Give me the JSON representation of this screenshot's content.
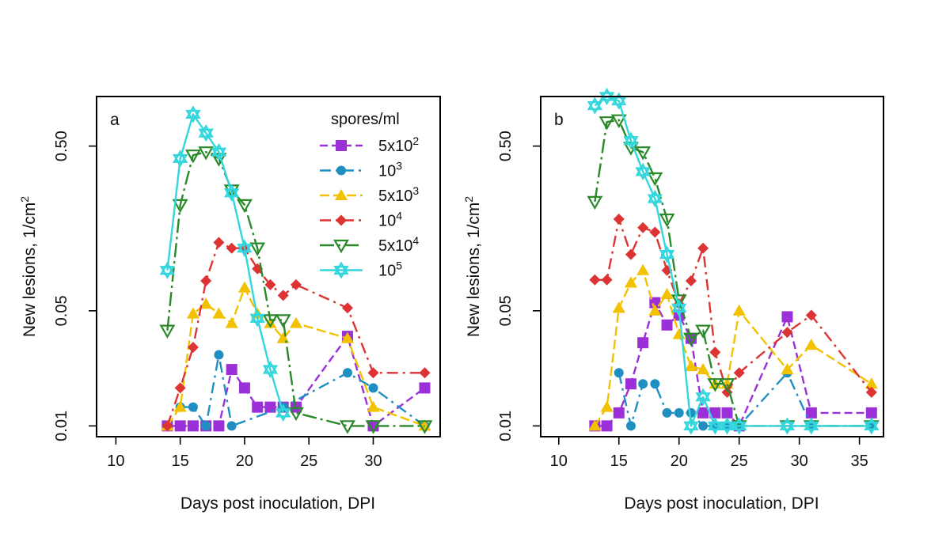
{
  "chart_data": [
    {
      "panel": "a",
      "type": "line",
      "xlabel": "Days post inoculation, DPI",
      "ylabel": "New lesions, 1/cm",
      "ylabel_sup": "2",
      "ylog": true,
      "xlim": [
        8.5,
        35.2
      ],
      "ylim": [
        0.0086,
        1.0
      ],
      "xticks": [
        10,
        15,
        20,
        25,
        30
      ],
      "yticks": [
        {
          "value": 0.01,
          "label": "0.01"
        },
        {
          "value": 0.05,
          "label": "0.05"
        },
        {
          "value": 0.5,
          "label": "0.50"
        }
      ],
      "legend": {
        "title": "spores/ml",
        "placement": "top-right",
        "entries": [
          {
            "base": "5x10",
            "sup": "2"
          },
          {
            "base": "10",
            "sup": "3"
          },
          {
            "base": "5x10",
            "sup": "3"
          },
          {
            "base": "10",
            "sup": "4"
          },
          {
            "base": "5x10",
            "sup": "4"
          },
          {
            "base": "10",
            "sup": "5"
          }
        ]
      },
      "series": [
        {
          "color": "#9b30d9",
          "marker": "square",
          "dash": "10,5",
          "x": [
            14,
            15,
            16,
            17,
            18,
            19,
            20,
            21,
            22,
            23,
            24,
            28,
            30,
            34
          ],
          "y": [
            0.01,
            0.01,
            0.01,
            0.01,
            0.01,
            0.022,
            0.017,
            0.013,
            0.013,
            0.013,
            0.013,
            0.035,
            0.01,
            0.017
          ]
        },
        {
          "color": "#1f8fc2",
          "marker": "circle",
          "dash": "14,6,3,6",
          "x": [
            15,
            16,
            17,
            18,
            19,
            23,
            28,
            30,
            34
          ],
          "y": [
            0.013,
            0.013,
            0.01,
            0.027,
            0.01,
            0.013,
            0.021,
            0.017,
            0.01
          ]
        },
        {
          "color": "#f2c200",
          "marker": "triangle",
          "dash": "12,5",
          "x": [
            14,
            15,
            16,
            17,
            18,
            19,
            20,
            21,
            22,
            23,
            24,
            28,
            30,
            34
          ],
          "y": [
            0.01,
            0.013,
            0.048,
            0.055,
            0.048,
            0.042,
            0.069,
            0.048,
            0.042,
            0.034,
            0.042,
            0.034,
            0.013,
            0.01
          ]
        },
        {
          "color": "#dd3333",
          "marker": "diamond",
          "dash": "14,6,3,6",
          "x": [
            14,
            15,
            16,
            17,
            18,
            19,
            20,
            21,
            22,
            23,
            24,
            28,
            30,
            34
          ],
          "y": [
            0.01,
            0.017,
            0.03,
            0.076,
            0.13,
            0.12,
            0.12,
            0.09,
            0.072,
            0.062,
            0.072,
            0.052,
            0.021,
            0.021
          ]
        },
        {
          "color": "#2a8a2a",
          "marker": "triangle-down",
          "dash": "18,5,3,5",
          "x": [
            14,
            15,
            16,
            17,
            18,
            19,
            20,
            21,
            22,
            23,
            24,
            28,
            30,
            34
          ],
          "y": [
            0.038,
            0.22,
            0.44,
            0.46,
            0.42,
            0.27,
            0.22,
            0.12,
            0.044,
            0.044,
            0.012,
            0.01,
            0.01,
            0.01
          ]
        },
        {
          "color": "#33d6dd",
          "marker": "star",
          "dash": "",
          "x": [
            14,
            15,
            16,
            17,
            18,
            19,
            20,
            21,
            22,
            23
          ],
          "y": [
            0.088,
            0.42,
            0.78,
            0.6,
            0.46,
            0.26,
            0.12,
            0.045,
            0.022,
            0.012
          ]
        }
      ]
    },
    {
      "panel": "b",
      "type": "line",
      "xlabel": "Days post inoculation, DPI",
      "ylabel": "New lesions, 1/cm",
      "ylabel_sup": "2",
      "ylog": true,
      "xlim": [
        8.5,
        37.0
      ],
      "ylim": [
        0.0086,
        1.0
      ],
      "xticks": [
        10,
        15,
        20,
        25,
        30,
        35
      ],
      "yticks": [
        {
          "value": 0.01,
          "label": "0.01"
        },
        {
          "value": 0.05,
          "label": "0.05"
        },
        {
          "value": 0.5,
          "label": "0.50"
        }
      ],
      "series": [
        {
          "color": "#9b30d9",
          "marker": "square",
          "dash": "10,5",
          "x": [
            13,
            14,
            15,
            16,
            17,
            18,
            19,
            20,
            21,
            22,
            23,
            24,
            25,
            29,
            31,
            36
          ],
          "y": [
            0.01,
            0.01,
            0.012,
            0.018,
            0.032,
            0.056,
            0.041,
            0.047,
            0.034,
            0.012,
            0.012,
            0.012,
            0.01,
            0.046,
            0.012,
            0.012
          ]
        },
        {
          "color": "#1f8fc2",
          "marker": "circle",
          "dash": "14,6,3,6",
          "x": [
            15,
            16,
            17,
            18,
            19,
            20,
            21,
            22,
            23,
            24,
            25,
            29,
            31,
            36
          ],
          "y": [
            0.021,
            0.01,
            0.018,
            0.018,
            0.012,
            0.012,
            0.012,
            0.01,
            0.01,
            0.01,
            0.01,
            0.021,
            0.01,
            0.01
          ]
        },
        {
          "color": "#f2c200",
          "marker": "triangle",
          "dash": "12,5",
          "x": [
            13,
            14,
            15,
            16,
            17,
            18,
            19,
            20,
            21,
            22,
            23,
            24,
            25,
            29,
            31,
            36
          ],
          "y": [
            0.01,
            0.013,
            0.052,
            0.074,
            0.088,
            0.05,
            0.063,
            0.036,
            0.023,
            0.022,
            0.018,
            0.018,
            0.05,
            0.022,
            0.031,
            0.018
          ]
        },
        {
          "color": "#dd3333",
          "marker": "diamond",
          "dash": "14,6,3,6",
          "x": [
            13,
            14,
            15,
            16,
            17,
            18,
            19,
            20,
            21,
            22,
            23,
            24,
            25,
            29,
            31,
            36
          ],
          "y": [
            0.077,
            0.077,
            0.18,
            0.11,
            0.16,
            0.15,
            0.088,
            0.055,
            0.076,
            0.12,
            0.028,
            0.016,
            0.021,
            0.037,
            0.047,
            0.016
          ]
        },
        {
          "color": "#2a8a2a",
          "marker": "triangle-down",
          "dash": "18,5,3,5",
          "x": [
            13,
            14,
            15,
            16,
            17,
            18,
            19,
            20,
            21,
            22,
            23,
            24,
            25,
            29,
            31,
            36
          ],
          "y": [
            0.23,
            0.7,
            0.72,
            0.49,
            0.46,
            0.32,
            0.18,
            0.058,
            0.034,
            0.038,
            0.018,
            0.018,
            0.01,
            0.01,
            0.01,
            0.01
          ]
        },
        {
          "color": "#33d6dd",
          "marker": "star",
          "dash": "",
          "x": [
            13,
            14,
            15,
            16,
            17,
            18,
            19,
            20,
            21,
            22,
            23,
            24,
            25,
            29,
            31,
            36
          ],
          "y": [
            0.88,
            1.0,
            0.94,
            0.54,
            0.35,
            0.24,
            0.11,
            0.052,
            0.01,
            0.015,
            0.01,
            0.01,
            0.01,
            0.01,
            0.01,
            0.01
          ]
        }
      ]
    }
  ]
}
